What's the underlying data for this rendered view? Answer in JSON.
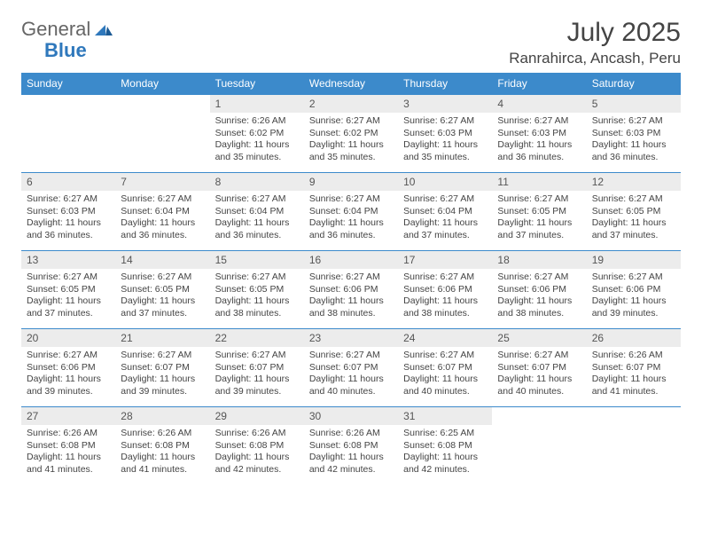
{
  "brand": {
    "part1": "General",
    "part2": "Blue"
  },
  "colors": {
    "header_bg": "#3c8acb",
    "header_text": "#ffffff",
    "daynum_bg": "#ececec",
    "text": "#444444",
    "row_border": "#3c8acb",
    "logo_gray": "#666666",
    "logo_blue": "#2f78bc"
  },
  "fonts": {
    "base_family": "Arial",
    "month_size_pt": 22,
    "location_size_pt": 13,
    "head_size_pt": 9,
    "cell_size_pt": 8
  },
  "month": "July 2025",
  "location": "Ranrahirca, Ancash, Peru",
  "weekdays": [
    "Sunday",
    "Monday",
    "Tuesday",
    "Wednesday",
    "Thursday",
    "Friday",
    "Saturday"
  ],
  "layout": {
    "columns": 7,
    "rows": 5,
    "first_weekday_index": 2,
    "days_in_month": 31
  },
  "days": {
    "1": {
      "sunrise": "6:26 AM",
      "sunset": "6:02 PM",
      "daylight": "11 hours and 35 minutes."
    },
    "2": {
      "sunrise": "6:27 AM",
      "sunset": "6:02 PM",
      "daylight": "11 hours and 35 minutes."
    },
    "3": {
      "sunrise": "6:27 AM",
      "sunset": "6:03 PM",
      "daylight": "11 hours and 35 minutes."
    },
    "4": {
      "sunrise": "6:27 AM",
      "sunset": "6:03 PM",
      "daylight": "11 hours and 36 minutes."
    },
    "5": {
      "sunrise": "6:27 AM",
      "sunset": "6:03 PM",
      "daylight": "11 hours and 36 minutes."
    },
    "6": {
      "sunrise": "6:27 AM",
      "sunset": "6:03 PM",
      "daylight": "11 hours and 36 minutes."
    },
    "7": {
      "sunrise": "6:27 AM",
      "sunset": "6:04 PM",
      "daylight": "11 hours and 36 minutes."
    },
    "8": {
      "sunrise": "6:27 AM",
      "sunset": "6:04 PM",
      "daylight": "11 hours and 36 minutes."
    },
    "9": {
      "sunrise": "6:27 AM",
      "sunset": "6:04 PM",
      "daylight": "11 hours and 36 minutes."
    },
    "10": {
      "sunrise": "6:27 AM",
      "sunset": "6:04 PM",
      "daylight": "11 hours and 37 minutes."
    },
    "11": {
      "sunrise": "6:27 AM",
      "sunset": "6:05 PM",
      "daylight": "11 hours and 37 minutes."
    },
    "12": {
      "sunrise": "6:27 AM",
      "sunset": "6:05 PM",
      "daylight": "11 hours and 37 minutes."
    },
    "13": {
      "sunrise": "6:27 AM",
      "sunset": "6:05 PM",
      "daylight": "11 hours and 37 minutes."
    },
    "14": {
      "sunrise": "6:27 AM",
      "sunset": "6:05 PM",
      "daylight": "11 hours and 37 minutes."
    },
    "15": {
      "sunrise": "6:27 AM",
      "sunset": "6:05 PM",
      "daylight": "11 hours and 38 minutes."
    },
    "16": {
      "sunrise": "6:27 AM",
      "sunset": "6:06 PM",
      "daylight": "11 hours and 38 minutes."
    },
    "17": {
      "sunrise": "6:27 AM",
      "sunset": "6:06 PM",
      "daylight": "11 hours and 38 minutes."
    },
    "18": {
      "sunrise": "6:27 AM",
      "sunset": "6:06 PM",
      "daylight": "11 hours and 38 minutes."
    },
    "19": {
      "sunrise": "6:27 AM",
      "sunset": "6:06 PM",
      "daylight": "11 hours and 39 minutes."
    },
    "20": {
      "sunrise": "6:27 AM",
      "sunset": "6:06 PM",
      "daylight": "11 hours and 39 minutes."
    },
    "21": {
      "sunrise": "6:27 AM",
      "sunset": "6:07 PM",
      "daylight": "11 hours and 39 minutes."
    },
    "22": {
      "sunrise": "6:27 AM",
      "sunset": "6:07 PM",
      "daylight": "11 hours and 39 minutes."
    },
    "23": {
      "sunrise": "6:27 AM",
      "sunset": "6:07 PM",
      "daylight": "11 hours and 40 minutes."
    },
    "24": {
      "sunrise": "6:27 AM",
      "sunset": "6:07 PM",
      "daylight": "11 hours and 40 minutes."
    },
    "25": {
      "sunrise": "6:27 AM",
      "sunset": "6:07 PM",
      "daylight": "11 hours and 40 minutes."
    },
    "26": {
      "sunrise": "6:26 AM",
      "sunset": "6:07 PM",
      "daylight": "11 hours and 41 minutes."
    },
    "27": {
      "sunrise": "6:26 AM",
      "sunset": "6:08 PM",
      "daylight": "11 hours and 41 minutes."
    },
    "28": {
      "sunrise": "6:26 AM",
      "sunset": "6:08 PM",
      "daylight": "11 hours and 41 minutes."
    },
    "29": {
      "sunrise": "6:26 AM",
      "sunset": "6:08 PM",
      "daylight": "11 hours and 42 minutes."
    },
    "30": {
      "sunrise": "6:26 AM",
      "sunset": "6:08 PM",
      "daylight": "11 hours and 42 minutes."
    },
    "31": {
      "sunrise": "6:25 AM",
      "sunset": "6:08 PM",
      "daylight": "11 hours and 42 minutes."
    }
  },
  "labels": {
    "sunrise_prefix": "Sunrise: ",
    "sunset_prefix": "Sunset: ",
    "daylight_prefix": "Daylight: "
  }
}
